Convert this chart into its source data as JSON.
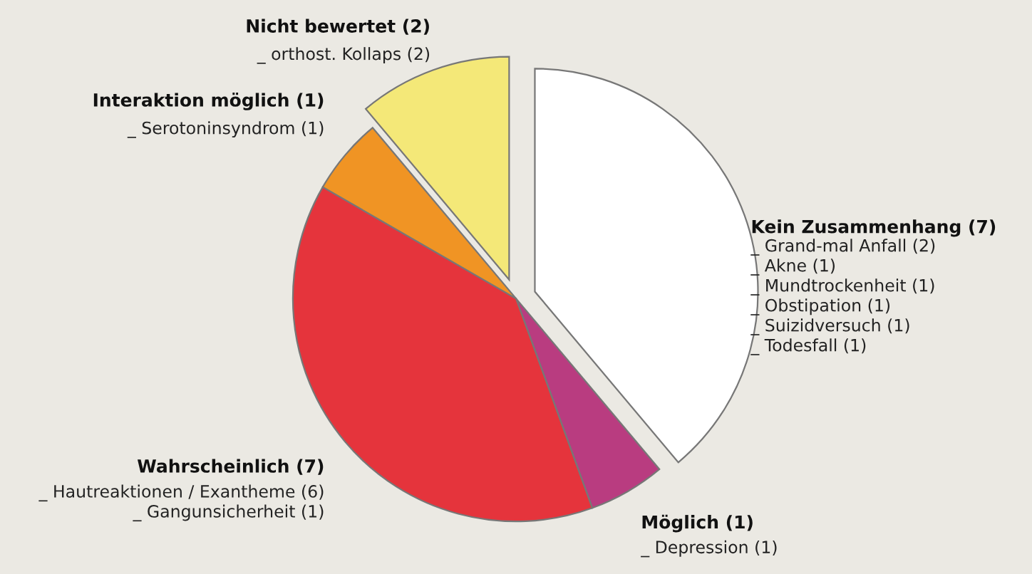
{
  "chart_data": {
    "type": "pie",
    "categories": [
      "Kein Zusammenhang (7)\n_ Grand-mal Anfall (2)\n_ Akne (1)\n_ Mundtrockenheit (1)\n_ Obstipation (1)\n_ Suizidversuch (1)\n_ Todesfall (1)",
      "Möglich (1)\n_ Depression (1)",
      "Wahrscheinlich (7)\n_ Hautreaktionen / Exantheme (6)\n_ Gangunsicherheit (1)",
      "Interaktion möglich (1)\n_ Serotoninsyndrom (1)",
      "Nicht bewertet (2)\n_ orthost. Kollaps (2)"
    ],
    "values": [
      7,
      1,
      7,
      1,
      2
    ],
    "colors": [
      "#ffffff",
      "#b93c80",
      "#e5343c",
      "#f09424",
      "#f4e878"
    ],
    "legend": false
  }
}
